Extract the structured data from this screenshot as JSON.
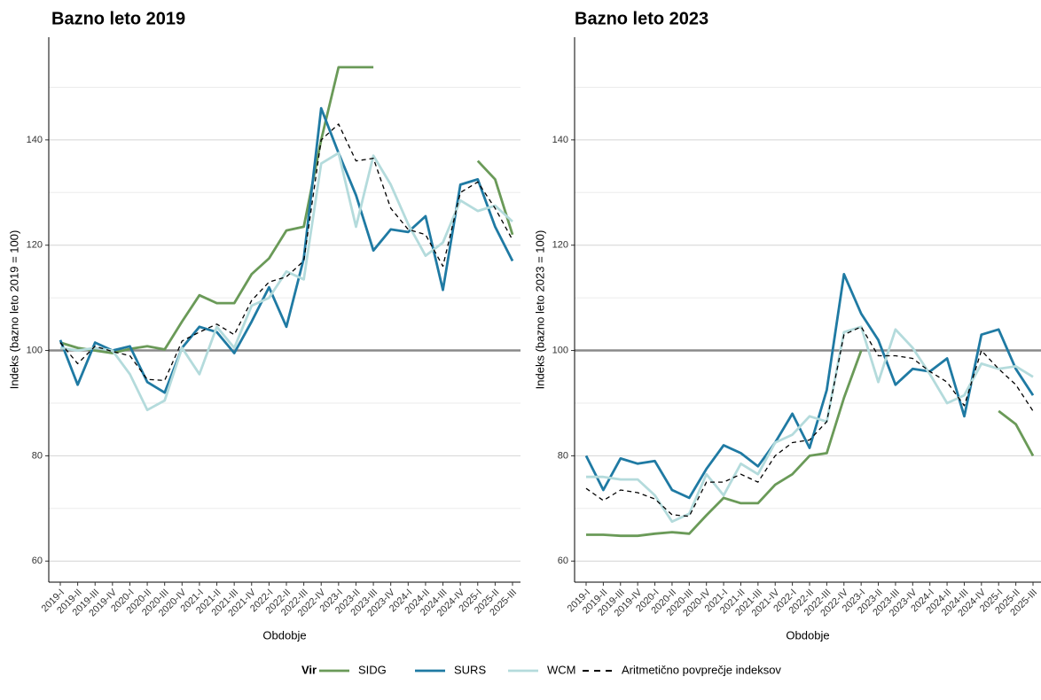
{
  "chart_data": [
    {
      "type": "line",
      "title": "Bazno leto 2019",
      "x_label": "Obdobje",
      "y_label": "Indeks (bazno leto 2019 = 100)",
      "legend_title": "Vir",
      "legend": "bottom",
      "grid": true,
      "reference_line": 100,
      "categories": [
        "2019-I",
        "2019-II",
        "2019-III",
        "2019-IV",
        "2020-I",
        "2020-II",
        "2020-III",
        "2020-IV",
        "2021-I",
        "2021-II",
        "2021-III",
        "2021-IV",
        "2022-I",
        "2022-II",
        "2022-III",
        "2022-IV",
        "2023-I",
        "2023-II",
        "2023-III",
        "2023-IV",
        "2024-I",
        "2024-II",
        "2024-III",
        "2024-IV",
        "2025-I",
        "2025-II",
        "2025-III"
      ],
      "ylim": [
        56,
        159.5
      ],
      "yticks": [
        60,
        80,
        100,
        120,
        140
      ],
      "minor_yticks": [
        70,
        90,
        110,
        130,
        150
      ],
      "series": [
        {
          "name": "SIDG",
          "color": "#6a9a58",
          "linestyle": "solid",
          "values": [
            101.5,
            100.5,
            100,
            99.5,
            100.3,
            100.8,
            100.2,
            105.5,
            110.5,
            109,
            109,
            114.5,
            117.5,
            122.8,
            123.5,
            140,
            153.8,
            153.8,
            153.8,
            null,
            null,
            null,
            null,
            null,
            136,
            132.5,
            122
          ]
        },
        {
          "name": "SURS",
          "color": "#1f7aa3",
          "linestyle": "solid",
          "values": [
            102,
            93.5,
            101.5,
            100,
            100.8,
            94,
            92,
            100.5,
            104.5,
            103.5,
            99.5,
            105.5,
            112,
            104.5,
            117.5,
            146,
            137.5,
            129.5,
            119,
            123,
            122.5,
            125.5,
            111.5,
            131.5,
            132.5,
            123.5,
            117
          ]
        },
        {
          "name": "WCM",
          "color": "#b4dbdc",
          "linestyle": "solid",
          "values": [
            100.5,
            100,
            100.5,
            100,
            95.5,
            88.7,
            90.5,
            100.5,
            95.5,
            104.5,
            100.5,
            108.5,
            110,
            115,
            113.5,
            135.5,
            137.5,
            123.5,
            137,
            131.5,
            124,
            118,
            120.5,
            128.5,
            126.5,
            127.5,
            124.5
          ]
        },
        {
          "name": "Aritmetično povprečje indeksov",
          "color": "#000000",
          "linestyle": "dashed",
          "values": [
            101.5,
            97.5,
            100.8,
            99.8,
            99,
            94.5,
            94.3,
            101.8,
            103.5,
            105,
            103,
            109.5,
            113,
            114,
            117,
            140,
            143,
            136,
            136.5,
            127,
            123,
            122,
            116,
            130,
            132,
            127,
            121
          ]
        }
      ]
    },
    {
      "type": "line",
      "title": "Bazno leto 2023",
      "x_label": "Obdobje",
      "y_label": "Indeks (bazno leto 2023 = 100)",
      "grid": true,
      "reference_line": 100,
      "categories": [
        "2019-I",
        "2019-II",
        "2019-III",
        "2019-IV",
        "2020-I",
        "2020-II",
        "2020-III",
        "2020-IV",
        "2021-I",
        "2021-II",
        "2021-III",
        "2021-IV",
        "2022-I",
        "2022-II",
        "2022-III",
        "2022-IV",
        "2023-I",
        "2023-II",
        "2023-III",
        "2023-IV",
        "2024-I",
        "2024-II",
        "2024-III",
        "2024-IV",
        "2025-I",
        "2025-II",
        "2025-III"
      ],
      "ylim": [
        56,
        159.5
      ],
      "yticks": [
        60,
        80,
        100,
        120,
        140
      ],
      "minor_yticks": [
        70,
        90,
        110,
        130,
        150
      ],
      "series": [
        {
          "name": "SIDG",
          "color": "#6a9a58",
          "linestyle": "solid",
          "values": [
            65,
            65,
            64.8,
            64.8,
            65.2,
            65.5,
            65.2,
            68.7,
            72,
            71,
            71,
            74.5,
            76.5,
            80,
            80.5,
            91,
            100,
            null,
            null,
            null,
            null,
            null,
            null,
            null,
            88.5,
            86,
            80
          ]
        },
        {
          "name": "SURS",
          "color": "#1f7aa3",
          "linestyle": "solid",
          "values": [
            80,
            73.5,
            79.5,
            78.5,
            79,
            73.5,
            72,
            77.5,
            82,
            80.5,
            78,
            82.5,
            88,
            81.5,
            92.5,
            114.5,
            107,
            102,
            93.5,
            96.5,
            96,
            98.5,
            87.5,
            103,
            104,
            96.5,
            91.5
          ]
        },
        {
          "name": "WCM",
          "color": "#b4dbdc",
          "linestyle": "solid",
          "values": [
            76,
            76,
            75.5,
            75.5,
            72.5,
            67.5,
            69,
            76.5,
            72.5,
            78.5,
            76.5,
            82.5,
            84,
            87.5,
            86.5,
            103.5,
            104.5,
            94,
            104,
            100.5,
            95.5,
            90,
            91.5,
            97.5,
            96.5,
            97,
            95
          ]
        },
        {
          "name": "Aritmetično povprečje indeksov",
          "color": "#000000",
          "linestyle": "dashed",
          "values": [
            73.8,
            71.5,
            73.5,
            73,
            71.8,
            68.8,
            68.5,
            75,
            75,
            76.5,
            75,
            80,
            82.5,
            83,
            86.5,
            103,
            104.5,
            99,
            99,
            98.5,
            96,
            94,
            89.5,
            100,
            96.5,
            93.5,
            88.5
          ]
        }
      ]
    }
  ]
}
